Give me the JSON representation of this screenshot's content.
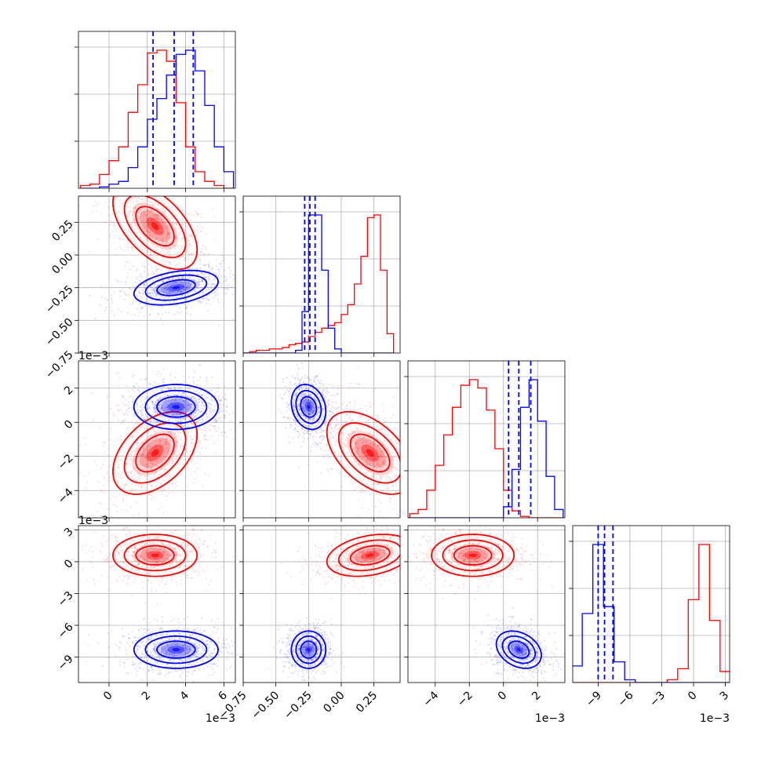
{
  "colors": {
    "series_a": "#ff0000",
    "series_b": "#0000ff",
    "grid": "#b0b0b0",
    "frame": "#000000"
  },
  "chart_data": {
    "type": "corner",
    "parameters": [
      {
        "scale": 0.001,
        "range": [
          -1.6,
          6.6
        ],
        "ticks": [
          0,
          2,
          4,
          6
        ],
        "tick_labels": [
          "0",
          "2",
          "4",
          "6"
        ],
        "offset_label": "1e−3"
      },
      {
        "scale": 1,
        "range": [
          -0.75,
          0.45
        ],
        "ticks": [
          -0.75,
          -0.5,
          -0.25,
          0,
          0.25
        ],
        "tick_labels": [
          "−0.75",
          "−0.50",
          "−0.25",
          "0.00",
          "0.25"
        ],
        "offset_label": ""
      },
      {
        "scale": 0.001,
        "range": [
          -5.6,
          3.6
        ],
        "ticks": [
          -4,
          -2,
          0,
          2
        ],
        "tick_labels": [
          "−4",
          "−2",
          "0",
          "2"
        ],
        "offset_label": "1e−3"
      },
      {
        "scale": 0.001,
        "range": [
          -11.4,
          3.4
        ],
        "ticks": [
          -9,
          -6,
          -3,
          0,
          3
        ],
        "tick_labels": [
          "−9",
          "−6",
          "−3",
          "0",
          "3"
        ],
        "offset_label": "1e−3"
      }
    ],
    "grid": true,
    "series": [
      {
        "color": "red",
        "means": [
          2.4,
          0.22,
          -1.8,
          0.6
        ],
        "sds": [
          1.0,
          0.15,
          1.1,
          0.9
        ],
        "marginals": [
          {
            "bins": [
              -1.5,
              -1,
              -0.5,
              0,
              0.5,
              1,
              1.5,
              2,
              2.5,
              3,
              3.5,
              4,
              4.5,
              5,
              5.5,
              6,
              6.5
            ],
            "counts": [
              0.02,
              0.03,
              0.1,
              0.2,
              0.3,
              0.55,
              0.75,
              0.98,
              1.0,
              0.92,
              0.62,
              0.3,
              0.12,
              0.05,
              0.02,
              0.0
            ]
          },
          {
            "bins": [
              -0.75,
              -0.7,
              -0.65,
              -0.6,
              -0.55,
              -0.5,
              -0.45,
              -0.4,
              -0.35,
              -0.3,
              -0.25,
              -0.2,
              -0.15,
              -0.1,
              -0.05,
              0,
              0.05,
              0.1,
              0.15,
              0.2,
              0.25,
              0.3,
              0.35,
              0.4
            ],
            "counts": [
              0.0,
              0.01,
              0.02,
              0.02,
              0.03,
              0.03,
              0.04,
              0.06,
              0.07,
              0.08,
              0.12,
              0.15,
              0.18,
              0.2,
              0.22,
              0.28,
              0.35,
              0.5,
              0.7,
              0.98,
              1.0,
              0.6,
              0.14
            ]
          },
          {
            "bins": [
              -5.5,
              -5,
              -4.5,
              -4,
              -3.5,
              -3,
              -2.5,
              -2,
              -1.5,
              -1,
              -0.5,
              0,
              0.5,
              1,
              1.5,
              2,
              2.5,
              3,
              3.5
            ],
            "counts": [
              0.03,
              0.06,
              0.2,
              0.38,
              0.6,
              0.8,
              0.96,
              1.0,
              0.94,
              0.78,
              0.5,
              0.2,
              0.05,
              0.01,
              0,
              0,
              0,
              0
            ]
          },
          {
            "bins": [
              -11.5,
              -10.5,
              -9.5,
              -8.5,
              -7.5,
              -6.5,
              -5.5,
              -4.5,
              -3.5,
              -2.5,
              -1.5,
              -0.5,
              0.5,
              1.5,
              2.5,
              3.5
            ],
            "counts": [
              0,
              0,
              0,
              0,
              0,
              0,
              0,
              0,
              0,
              0.02,
              0.1,
              0.6,
              1.0,
              0.45,
              0.08
            ]
          }
        ],
        "quantile_lines": []
      },
      {
        "color": "blue",
        "means": [
          3.5,
          -0.25,
          0.9,
          -8.3
        ],
        "sds": [
          1.0,
          0.06,
          0.6,
          0.8
        ],
        "marginals": [
          {
            "bins": [
              -1.5,
              -1,
              -0.5,
              0,
              0.5,
              1,
              1.5,
              2,
              2.5,
              3,
              3.5,
              4,
              4.5,
              5,
              5.5,
              6,
              6.5
            ],
            "counts": [
              0,
              0,
              0.01,
              0.03,
              0.05,
              0.15,
              0.3,
              0.5,
              0.65,
              0.82,
              0.97,
              1.0,
              0.85,
              0.6,
              0.3,
              0.12,
              0.03
            ]
          },
          {
            "bins": [
              -0.75,
              -0.7,
              -0.65,
              -0.6,
              -0.55,
              -0.5,
              -0.45,
              -0.4,
              -0.35,
              -0.3,
              -0.25,
              -0.2,
              -0.15,
              -0.1,
              -0.05,
              0,
              0.05,
              0.1,
              0.15,
              0.2,
              0.25,
              0.3,
              0.35,
              0.4
            ],
            "counts": [
              0,
              0,
              0,
              0,
              0,
              0,
              0,
              0,
              0.02,
              0.3,
              1.0,
              1.0,
              0.6,
              0.18,
              0.03,
              0,
              0,
              0,
              0,
              0,
              0,
              0,
              0
            ]
          },
          {
            "bins": [
              -5.5,
              -5,
              -4.5,
              -4,
              -3.5,
              -3,
              -2.5,
              -2,
              -1.5,
              -1,
              -0.5,
              0,
              0.5,
              1,
              1.5,
              2,
              2.5,
              3,
              3.5
            ],
            "counts": [
              0,
              0,
              0,
              0,
              0,
              0,
              0,
              0,
              0,
              0,
              0,
              0.08,
              0.35,
              0.8,
              1.0,
              0.7,
              0.3,
              0.06
            ]
          },
          {
            "bins": [
              -11.5,
              -10.5,
              -9.5,
              -8.5,
              -7.5,
              -6.5,
              -5.5,
              -4.5,
              -3.5,
              -2.5,
              -1.5,
              -0.5,
              0.5,
              1.5,
              2.5,
              3.5
            ],
            "counts": [
              0.12,
              0.5,
              1.0,
              0.55,
              0.15,
              0.02,
              0,
              0,
              0,
              0,
              0,
              0,
              0,
              0,
              0
            ]
          }
        ],
        "quantile_lines": [
          [
            2.3,
            3.4,
            4.4
          ],
          [
            -0.28,
            -0.24,
            -0.2
          ],
          [
            0.3,
            0.9,
            1.6
          ],
          [
            -9.0,
            -8.4,
            -7.6
          ]
        ]
      }
    ]
  }
}
